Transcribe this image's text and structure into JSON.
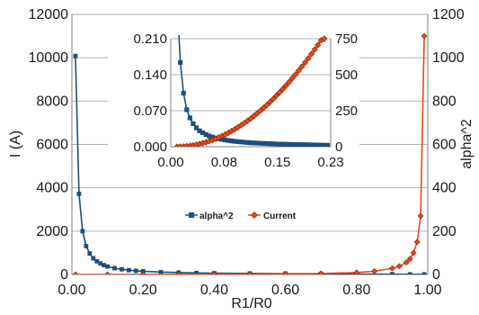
{
  "colors": {
    "alpha2": "#1f4e79",
    "current": "#e8491d",
    "current_marker_fill": "#e8491d",
    "grid": "#b3b3b3"
  },
  "chart_data": [
    {
      "type": "line",
      "xlabel": "R1/R0",
      "ylabel": "I (A)",
      "y2label": "alpha^2",
      "xlim": [
        0,
        1
      ],
      "ylim": [
        0,
        12000
      ],
      "y2lim": [
        0,
        1200
      ],
      "x_ticks": [
        "0.00",
        "0.20",
        "0.40",
        "0.60",
        "0.80",
        "1.00"
      ],
      "y_ticks": [
        "0",
        "2000",
        "4000",
        "6000",
        "8000",
        "10000",
        "12000"
      ],
      "y2_ticks": [
        "0",
        "200",
        "400",
        "600",
        "800",
        "1000",
        "1200"
      ],
      "grid": true,
      "legend": {
        "placement": "center",
        "entries": [
          "alpha^2",
          "Current"
        ]
      },
      "series": [
        {
          "name": "alpha^2",
          "axis": "right",
          "points": [
            [
              0.01,
              1008
            ],
            [
              0.02,
              372
            ],
            [
              0.03,
              200
            ],
            [
              0.04,
              131
            ],
            [
              0.05,
              97
            ],
            [
              0.06,
              75
            ],
            [
              0.07,
              61
            ],
            [
              0.08,
              51
            ],
            [
              0.09,
              43
            ],
            [
              0.1,
              37
            ],
            [
              0.12,
              29
            ],
            [
              0.14,
              24
            ],
            [
              0.16,
              20
            ],
            [
              0.18,
              17
            ],
            [
              0.2,
              15
            ],
            [
              0.25,
              11
            ],
            [
              0.3,
              9
            ],
            [
              0.35,
              7
            ],
            [
              0.4,
              6
            ],
            [
              0.5,
              5
            ],
            [
              0.6,
              4
            ],
            [
              0.7,
              3
            ],
            [
              0.8,
              2
            ],
            [
              0.9,
              1.5
            ],
            [
              0.95,
              1
            ],
            [
              0.99,
              1
            ]
          ]
        },
        {
          "name": "Current",
          "axis": "left",
          "points": [
            [
              0.01,
              0
            ],
            [
              0.1,
              2
            ],
            [
              0.2,
              5
            ],
            [
              0.3,
              8
            ],
            [
              0.4,
              12
            ],
            [
              0.5,
              18
            ],
            [
              0.6,
              28
            ],
            [
              0.7,
              45
            ],
            [
              0.8,
              90
            ],
            [
              0.85,
              150
            ],
            [
              0.9,
              280
            ],
            [
              0.92,
              380
            ],
            [
              0.94,
              560
            ],
            [
              0.95,
              720
            ],
            [
              0.96,
              1000
            ],
            [
              0.97,
              1500
            ],
            [
              0.98,
              2700
            ],
            [
              0.99,
              11000
            ]
          ]
        }
      ]
    },
    {
      "type": "line",
      "xlim": [
        0,
        0.25
      ],
      "ylim": [
        0,
        0.21
      ],
      "y2lim": [
        0,
        750
      ],
      "x_ticks": [
        "0.00",
        "0.08",
        "0.15",
        "0.23"
      ],
      "y_ticks": [
        "0.000",
        "0.070",
        "0.140",
        "0.210"
      ],
      "y2_ticks": [
        "0",
        "250",
        "500",
        "750"
      ],
      "series": [
        {
          "name": "alpha^2",
          "axis": "right",
          "points": [
            [
              0.01,
              1008
            ],
            [
              0.015,
              585
            ],
            [
              0.02,
              372
            ],
            [
              0.025,
              257
            ],
            [
              0.03,
              200
            ],
            [
              0.035,
              160
            ],
            [
              0.04,
              131
            ],
            [
              0.045,
              110
            ],
            [
              0.05,
              97
            ],
            [
              0.055,
              85
            ],
            [
              0.06,
              75
            ],
            [
              0.065,
              67
            ],
            [
              0.07,
              61
            ],
            [
              0.075,
              55
            ],
            [
              0.08,
              51
            ],
            [
              0.085,
              47
            ],
            [
              0.09,
              43
            ],
            [
              0.095,
              40
            ],
            [
              0.1,
              37
            ],
            [
              0.105,
              35
            ],
            [
              0.11,
              33
            ],
            [
              0.115,
              31
            ],
            [
              0.12,
              29
            ],
            [
              0.125,
              27
            ],
            [
              0.13,
              26
            ],
            [
              0.135,
              25
            ],
            [
              0.14,
              24
            ],
            [
              0.145,
              23
            ],
            [
              0.15,
              22
            ],
            [
              0.155,
              21
            ],
            [
              0.16,
              20
            ],
            [
              0.165,
              19
            ],
            [
              0.17,
              18
            ],
            [
              0.175,
              17.5
            ],
            [
              0.18,
              17
            ],
            [
              0.185,
              16
            ],
            [
              0.19,
              15.5
            ],
            [
              0.195,
              15
            ],
            [
              0.2,
              14.5
            ],
            [
              0.205,
              14
            ],
            [
              0.21,
              13.5
            ],
            [
              0.215,
              13
            ],
            [
              0.22,
              12.5
            ],
            [
              0.225,
              12
            ],
            [
              0.23,
              11.5
            ],
            [
              0.235,
              11
            ],
            [
              0.24,
              10.5
            ],
            [
              0.245,
              10
            ]
          ]
        },
        {
          "name": "Current",
          "axis": "left",
          "points": [
            [
              0.01,
              0.0
            ],
            [
              0.015,
              0.0002
            ],
            [
              0.02,
              0.0005
            ],
            [
              0.025,
              0.001
            ],
            [
              0.03,
              0.0018
            ],
            [
              0.035,
              0.0028
            ],
            [
              0.04,
              0.004
            ],
            [
              0.045,
              0.0054
            ],
            [
              0.05,
              0.007
            ],
            [
              0.055,
              0.0088
            ],
            [
              0.06,
              0.0108
            ],
            [
              0.065,
              0.013
            ],
            [
              0.07,
              0.0154
            ],
            [
              0.075,
              0.018
            ],
            [
              0.08,
              0.0208
            ],
            [
              0.085,
              0.0238
            ],
            [
              0.09,
              0.027
            ],
            [
              0.095,
              0.0304
            ],
            [
              0.1,
              0.034
            ],
            [
              0.105,
              0.0378
            ],
            [
              0.11,
              0.0418
            ],
            [
              0.115,
              0.046
            ],
            [
              0.12,
              0.0504
            ],
            [
              0.125,
              0.055
            ],
            [
              0.13,
              0.0598
            ],
            [
              0.135,
              0.0648
            ],
            [
              0.14,
              0.07
            ],
            [
              0.145,
              0.0754
            ],
            [
              0.15,
              0.081
            ],
            [
              0.155,
              0.0868
            ],
            [
              0.16,
              0.0928
            ],
            [
              0.165,
              0.099
            ],
            [
              0.17,
              0.1054
            ],
            [
              0.175,
              0.112
            ],
            [
              0.18,
              0.1188
            ],
            [
              0.185,
              0.1258
            ],
            [
              0.19,
              0.133
            ],
            [
              0.195,
              0.1404
            ],
            [
              0.2,
              0.148
            ],
            [
              0.205,
              0.1558
            ],
            [
              0.21,
              0.1638
            ],
            [
              0.215,
              0.172
            ],
            [
              0.22,
              0.1804
            ],
            [
              0.225,
              0.189
            ],
            [
              0.23,
              0.1978
            ],
            [
              0.235,
              0.2068
            ],
            [
              0.24,
              0.21
            ]
          ]
        }
      ]
    }
  ]
}
